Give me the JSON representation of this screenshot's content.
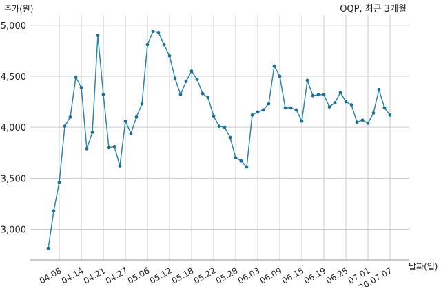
{
  "chart_data": {
    "type": "line",
    "title": "OQP, 최근 3개월",
    "ylabel": "주가(원)",
    "xlabel": "날짜(일)",
    "ylim": [
      2700,
      5100
    ],
    "yticks": [
      3000,
      3500,
      4000,
      4500,
      5000
    ],
    "ytick_labels": [
      "3,000",
      "3,500",
      "4,000",
      "4,500",
      "5,000"
    ],
    "x_tick_labels": [
      "04.08",
      "04.14",
      "04.21",
      "04.27",
      "05.06",
      "05.12",
      "05.18",
      "05.22",
      "05.28",
      "06.03",
      "06.09",
      "06.15",
      "06.19",
      "06.25",
      "07.01",
      "20.07.07"
    ],
    "x_tick_index": [
      2,
      6,
      10,
      14,
      18,
      22,
      26,
      30,
      34,
      38,
      42,
      46,
      50,
      54,
      58,
      62
    ],
    "grid": true,
    "colors": {
      "line": "#2e86ab",
      "point": "#1f6e93",
      "grid": "#cccccc"
    },
    "series": [
      {
        "values": [
          2810,
          3180,
          3460,
          4010,
          4100,
          4490,
          4390,
          3790,
          3950,
          4900,
          4320,
          3800,
          3810,
          3620,
          4060,
          3940,
          4100,
          4230,
          4810,
          4940,
          4930,
          4810,
          4700,
          4480,
          4320,
          4450,
          4550,
          4470,
          4330,
          4290,
          4110,
          4010,
          4000,
          3900,
          3700,
          3670,
          3610,
          4120,
          4150,
          4170,
          4230,
          4600,
          4500,
          4190,
          4190,
          4170,
          4060,
          4460,
          4310,
          4320,
          4320,
          4200,
          4240,
          4340,
          4250,
          4220,
          4050,
          4070,
          4040,
          4140,
          4370,
          4190,
          4120
        ]
      }
    ]
  }
}
